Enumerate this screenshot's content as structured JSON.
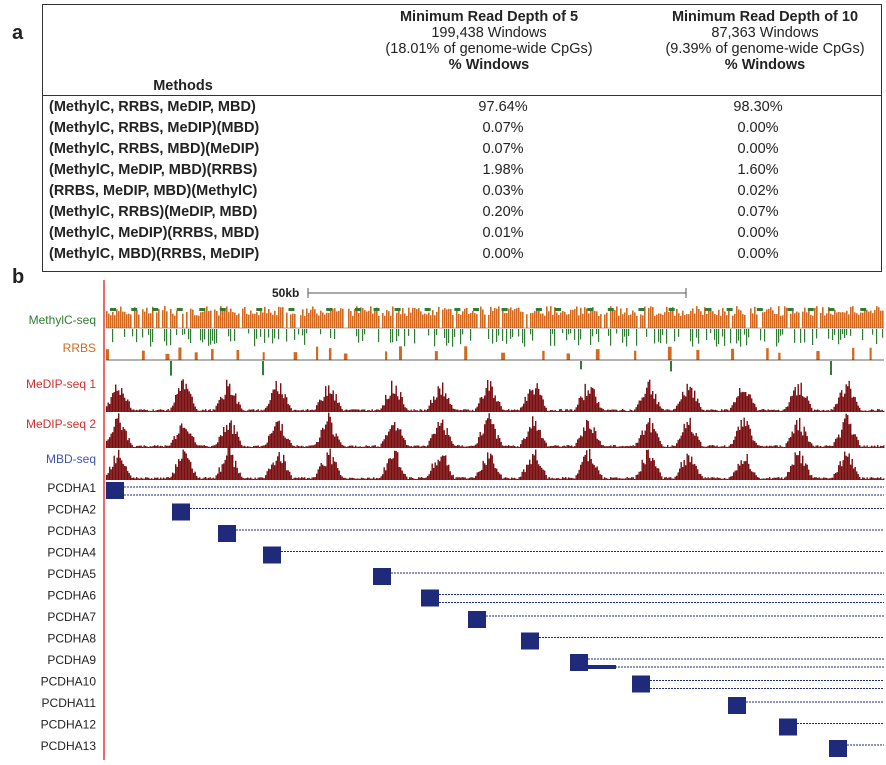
{
  "panel_a": {
    "label": "a",
    "col1": {
      "title": "Minimum Read Depth of 5",
      "windows": "199,438 Windows",
      "pct_cpg": "(18.01% of genome-wide CpGs)",
      "metric": "% Windows"
    },
    "col2": {
      "title": "Minimum Read Depth of 10",
      "windows": "87,363 Windows",
      "pct_cpg": "(9.39% of genome-wide CpGs)",
      "metric": "% Windows"
    },
    "methods_header": "Methods",
    "rows": [
      {
        "method": "(MethylC, RRBS, MeDIP, MBD)",
        "v1": "97.64%",
        "v2": "98.30%"
      },
      {
        "method": "(MethylC, RRBS, MeDIP)(MBD)",
        "v1": "0.07%",
        "v2": "0.00%"
      },
      {
        "method": "(MethylC, RRBS, MBD)(MeDIP)",
        "v1": "0.07%",
        "v2": "0.00%"
      },
      {
        "method": "(MethylC, MeDIP, MBD)(RRBS)",
        "v1": "1.98%",
        "v2": "1.60%"
      },
      {
        "method": "(RRBS, MeDIP, MBD)(MethylC)",
        "v1": "0.03%",
        "v2": "0.02%"
      },
      {
        "method": "(MethylC, RRBS)(MeDIP, MBD)",
        "v1": "0.20%",
        "v2": "0.07%"
      },
      {
        "method": "(MethylC, MeDIP)(RRBS, MBD)",
        "v1": "0.01%",
        "v2": "0.00%"
      },
      {
        "method": "(MethylC, MBD)(RRBS, MeDIP)",
        "v1": "0.00%",
        "v2": "0.00%"
      }
    ]
  },
  "panel_b": {
    "label": "b",
    "scale_label": "50kb",
    "tracks": [
      {
        "name": "MethylC-seq",
        "color": "#2e7d32"
      },
      {
        "name": "RRBS",
        "color": "#d2691e"
      },
      {
        "name": "MeDIP-seq 1",
        "color": "#d32f2f"
      },
      {
        "name": "MeDIP-seq 2",
        "color": "#d32f2f"
      },
      {
        "name": "MBD-seq",
        "color": "#3f51b5"
      }
    ],
    "genes": [
      "PCDHA1",
      "PCDHA2",
      "PCDHA3",
      "PCDHA4",
      "PCDHA5",
      "PCDHA6",
      "PCDHA7",
      "PCDHA8",
      "PCDHA9",
      "PCDHA10",
      "PCDHA11",
      "PCDHA12",
      "PCDHA13"
    ],
    "colors": {
      "methyl": "#d2691e",
      "methyl_neg": "#2e7d32",
      "peak": "#7a0f12",
      "gene": "#1f2a7a",
      "redline": "#e53935"
    }
  }
}
